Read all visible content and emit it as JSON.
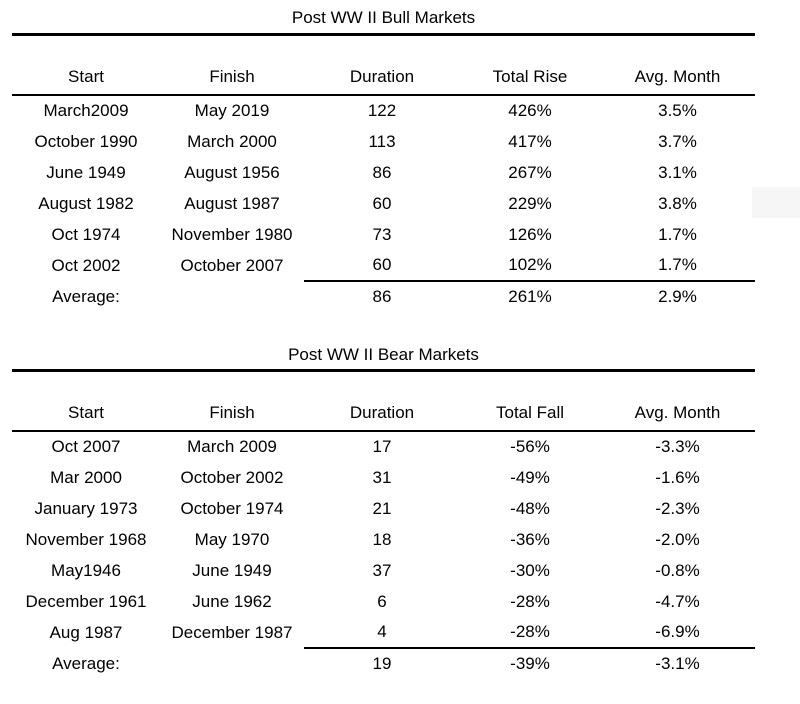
{
  "colors": {
    "background": "#ffffff",
    "text": "#000000",
    "rule_line": "#000000",
    "artifact_gray": "#f6f6f6"
  },
  "chart_data": [
    {
      "type": "table",
      "title": "Post WW II Bull Markets",
      "columns": [
        "Start",
        "Finish",
        "Duration",
        "Total Rise",
        "Avg. Month"
      ],
      "rows": [
        [
          "March2009",
          "May 2019",
          "122",
          "426%",
          "3.5%"
        ],
        [
          "October 1990",
          "March 2000",
          "113",
          "417%",
          "3.7%"
        ],
        [
          "June 1949",
          "August 1956",
          "86",
          "267%",
          "3.1%"
        ],
        [
          "August 1982",
          "August 1987",
          "60",
          "229%",
          "3.8%"
        ],
        [
          "Oct 1974",
          "November 1980",
          "73",
          "126%",
          "1.7%"
        ],
        [
          "Oct 2002",
          "October 2007",
          "60",
          "102%",
          "1.7%"
        ]
      ],
      "footer": [
        "Average:",
        "",
        "86",
        "261%",
        "2.9%"
      ],
      "layout": {
        "grid": false,
        "header_rule": true,
        "footer_partial_rule_from_column": "Duration"
      }
    },
    {
      "type": "table",
      "title": "Post WW II Bear Markets",
      "columns": [
        "Start",
        "Finish",
        "Duration",
        "Total Fall",
        "Avg. Month"
      ],
      "rows": [
        [
          "Oct 2007",
          "March 2009",
          "17",
          "-56%",
          "-3.3%"
        ],
        [
          "Mar 2000",
          "October 2002",
          "31",
          "-49%",
          "-1.6%"
        ],
        [
          "January 1973",
          "October 1974",
          "21",
          "-48%",
          "-2.3%"
        ],
        [
          "November 1968",
          "May 1970",
          "18",
          "-36%",
          "-2.0%"
        ],
        [
          "May1946",
          "June 1949",
          "37",
          "-30%",
          "-0.8%"
        ],
        [
          "December 1961",
          "June 1962",
          "6",
          "-28%",
          "-4.7%"
        ],
        [
          "Aug 1987",
          "December 1987",
          "4",
          "-28%",
          "-6.9%"
        ]
      ],
      "footer": [
        "Average:",
        "",
        "19",
        "-39%",
        "-3.1%"
      ],
      "layout": {
        "grid": false,
        "header_rule": true,
        "footer_partial_rule_from_column": "Duration"
      }
    }
  ]
}
